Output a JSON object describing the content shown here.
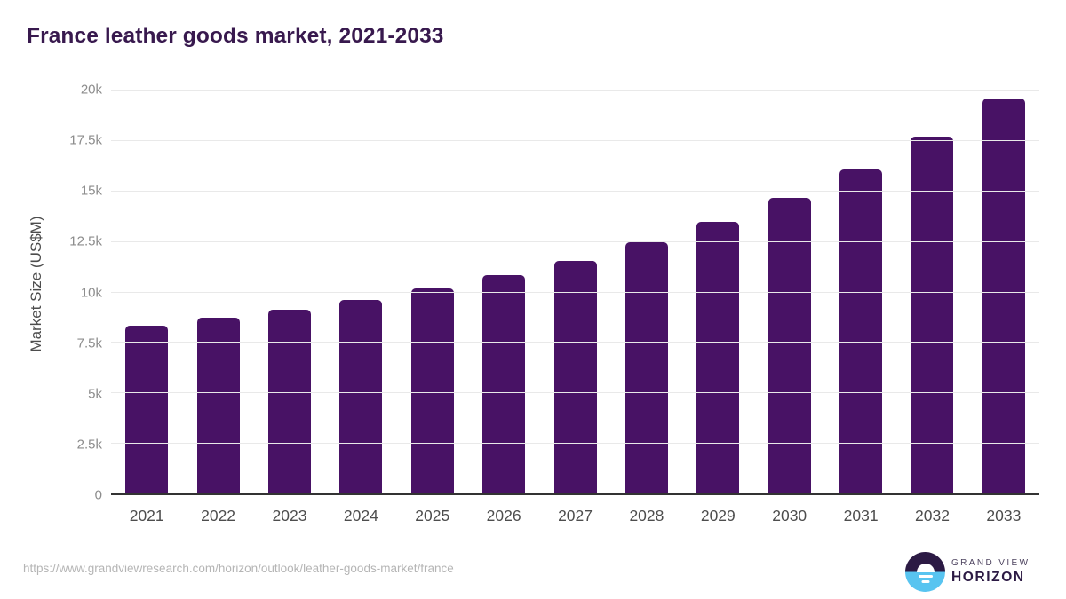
{
  "header": {
    "title": "France leather goods market, 2021-2033"
  },
  "chart_data": {
    "type": "bar",
    "title": "France leather goods market, 2021-2033",
    "categories": [
      "2021",
      "2022",
      "2023",
      "2024",
      "2025",
      "2026",
      "2027",
      "2028",
      "2029",
      "2030",
      "2031",
      "2032",
      "2033"
    ],
    "values": [
      8300,
      8700,
      9100,
      9600,
      10150,
      10800,
      11500,
      12450,
      13450,
      14650,
      16050,
      17650,
      19550
    ],
    "xlabel": "",
    "ylabel": "Market Size (US$M)",
    "ylim": [
      0,
      20000
    ],
    "yticks": [
      0,
      2500,
      5000,
      7500,
      10000,
      12500,
      15000,
      17500,
      20000
    ],
    "ytick_labels": [
      "0",
      "2.5k",
      "5k",
      "7.5k",
      "10k",
      "12.5k",
      "15k",
      "17.5k",
      "20k"
    ],
    "grid": true,
    "legend": false,
    "bar_color": "#481265"
  },
  "footer": {
    "source_url": "https://www.grandviewresearch.com/horizon/outlook/leather-goods-market/france",
    "logo": {
      "line1": "GRAND VIEW",
      "line2": "HORIZON"
    }
  },
  "colors": {
    "bar": "#481265",
    "title_text": "#38194e",
    "gridline": "#e9e9e9",
    "axis_line": "#333333",
    "ytick_text": "#8c8c8c",
    "xtick_text": "#4d4d4d",
    "url_text": "#b5b5b5",
    "logo_dark": "#2c1a44",
    "logo_blue": "#58c4f0"
  }
}
